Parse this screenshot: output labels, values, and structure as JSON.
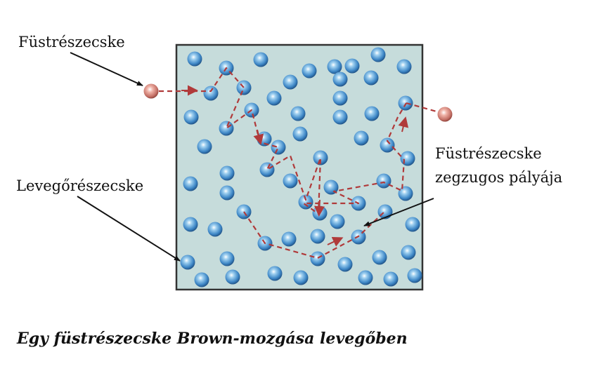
{
  "labels": {
    "smoke_particle": "Füstrészecske",
    "air_particle": "Levegőrészecske",
    "path_line1": "Füstrészecske",
    "path_line2": "zegzugos pályája"
  },
  "caption": "Egy füstrészecske Brown-mozgása levegőben",
  "colors": {
    "box_fill": "#c6dcdb",
    "box_stroke": "#333333",
    "air_particle": "#3f88c7",
    "smoke_particle": "#c47066",
    "path": "#b03a3a",
    "arrow": "#111111"
  }
}
